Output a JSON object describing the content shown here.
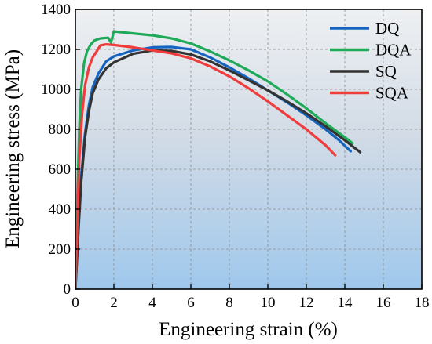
{
  "chart_data": {
    "type": "line",
    "xlabel": "Engineering strain (%)",
    "ylabel": "Engineering stress (MPa)",
    "xlim": [
      0,
      18
    ],
    "ylim": [
      0,
      1400
    ],
    "xticks": [
      0,
      2,
      4,
      6,
      8,
      10,
      12,
      14,
      16,
      18
    ],
    "yticks": [
      0,
      200,
      400,
      600,
      800,
      1000,
      1200,
      1400
    ],
    "grid": true,
    "legend_position": "top-right",
    "background": "gradient light-blue to white",
    "series": [
      {
        "name": "DQ",
        "color": "#1565c0",
        "x": [
          0,
          0.15,
          0.3,
          0.5,
          0.7,
          0.9,
          1.2,
          1.6,
          2.0,
          3.0,
          4.0,
          5.0,
          6.0,
          7.0,
          8.0,
          9.0,
          10.0,
          11.0,
          12.0,
          13.0,
          13.7,
          14.3
        ],
        "y": [
          0,
          300,
          560,
          780,
          920,
          1010,
          1080,
          1140,
          1165,
          1195,
          1210,
          1212,
          1200,
          1160,
          1110,
          1055,
          995,
          935,
          870,
          800,
          745,
          690
        ]
      },
      {
        "name": "DQA",
        "color": "#1faa59",
        "x": [
          0,
          0.1,
          0.2,
          0.3,
          0.45,
          0.6,
          0.8,
          1.0,
          1.3,
          1.7,
          1.85,
          2.0,
          3.0,
          4.0,
          5.0,
          6.0,
          7.0,
          8.0,
          9.0,
          10.0,
          11.0,
          12.0,
          13.0,
          14.0,
          14.4
        ],
        "y": [
          0,
          450,
          800,
          1000,
          1130,
          1190,
          1225,
          1245,
          1255,
          1258,
          1235,
          1290,
          1280,
          1270,
          1255,
          1230,
          1190,
          1145,
          1095,
          1040,
          975,
          905,
          830,
          760,
          730
        ]
      },
      {
        "name": "SQ",
        "color": "#333333",
        "x": [
          0,
          0.15,
          0.3,
          0.5,
          0.7,
          0.9,
          1.2,
          1.6,
          2.0,
          3.0,
          4.0,
          5.0,
          6.0,
          7.0,
          8.0,
          9.0,
          10.0,
          11.0,
          12.0,
          13.0,
          14.0,
          14.8
        ],
        "y": [
          0,
          280,
          530,
          760,
          890,
          980,
          1050,
          1105,
          1135,
          1178,
          1195,
          1192,
          1175,
          1140,
          1095,
          1045,
          995,
          940,
          880,
          815,
          745,
          685
        ]
      },
      {
        "name": "SQA",
        "color": "#f03c3c",
        "x": [
          0,
          0.1,
          0.2,
          0.35,
          0.5,
          0.7,
          0.9,
          1.1,
          1.3,
          1.6,
          2.0,
          3.0,
          4.0,
          5.0,
          6.0,
          7.0,
          8.0,
          9.0,
          10.0,
          11.0,
          12.0,
          13.0,
          13.5
        ],
        "y": [
          0,
          350,
          650,
          880,
          1020,
          1110,
          1160,
          1190,
          1220,
          1225,
          1222,
          1210,
          1195,
          1180,
          1155,
          1115,
          1065,
          1005,
          940,
          870,
          800,
          720,
          670
        ]
      }
    ]
  }
}
